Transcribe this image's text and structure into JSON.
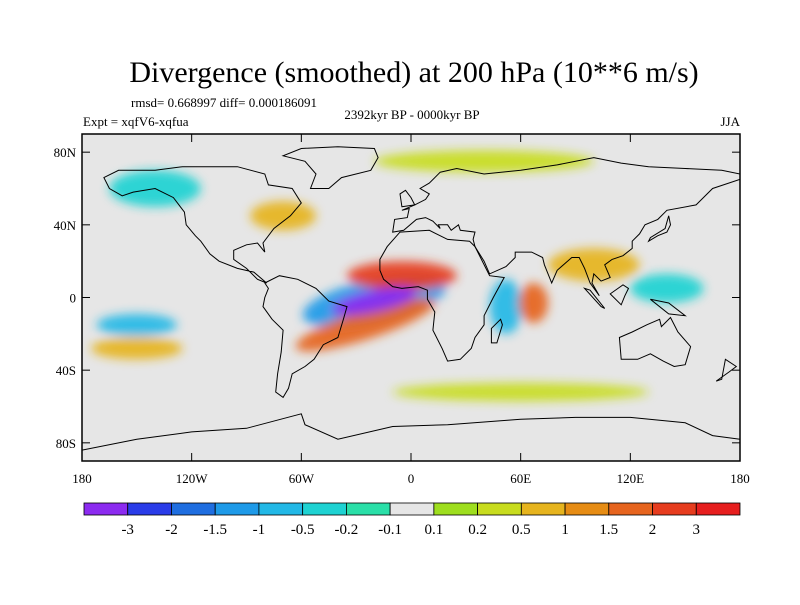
{
  "chart_data": {
    "type": "heatmap",
    "title": "Divergence (smoothed) at 200 hPa (10**6 m/s)",
    "stats": "rmsd= 0.668997 diff= 0.000186091",
    "experiment": "Expt = xqfV6-xqfua",
    "period": "2392kyr BP - 0000kyr BP",
    "season": "JJA",
    "projection": "cylindrical equidistant",
    "xlim": [
      -180,
      180
    ],
    "ylim": [
      -90,
      90
    ],
    "x_ticks": [
      {
        "value": -180,
        "label": "180"
      },
      {
        "value": -120,
        "label": "120W"
      },
      {
        "value": -60,
        "label": "60W"
      },
      {
        "value": 0,
        "label": "0"
      },
      {
        "value": 60,
        "label": "60E"
      },
      {
        "value": 120,
        "label": "120E"
      },
      {
        "value": 180,
        "label": "180"
      }
    ],
    "y_ticks": [
      {
        "value": 80,
        "label": "80N"
      },
      {
        "value": 40,
        "label": "40N"
      },
      {
        "value": 0,
        "label": "0"
      },
      {
        "value": -40,
        "label": "40S"
      },
      {
        "value": -80,
        "label": "80S"
      }
    ],
    "color_levels": [
      "-3",
      "-2",
      "-1.5",
      "-1",
      "-0.5",
      "-0.2",
      "-0.1",
      "0.1",
      "0.2",
      "0.5",
      "1",
      "1.5",
      "2",
      "3"
    ],
    "colors": [
      "#8c2bf0",
      "#2a3ce8",
      "#1f6ee0",
      "#1e9ae8",
      "#22b8e6",
      "#1ed2d2",
      "#2adfa8",
      "#e6e6e6",
      "#9ede1e",
      "#c8dc1e",
      "#e6b41e",
      "#e68c14",
      "#e6641e",
      "#e63c1e",
      "#e61e1e"
    ],
    "features": [
      {
        "name": "atlantic-convergence-core",
        "lon": -20,
        "lat": -2,
        "rx": 24,
        "ry": 6,
        "rot": 12,
        "value": -3.5
      },
      {
        "name": "atlantic-convergence-halo",
        "lon": -20,
        "lat": -2,
        "rx": 40,
        "ry": 12,
        "rot": 12,
        "value": -1.2
      },
      {
        "name": "west-africa-divergence",
        "lon": -5,
        "lat": 12,
        "rx": 30,
        "ry": 8,
        "rot": 0,
        "value": 2.0
      },
      {
        "name": "south-atlantic-divergence",
        "lon": -25,
        "lat": -15,
        "rx": 40,
        "ry": 8,
        "rot": 18,
        "value": 1.8
      },
      {
        "name": "indian-ocean-divergence",
        "lon": 67,
        "lat": -3,
        "rx": 8,
        "ry": 11,
        "rot": 0,
        "value": 1.6
      },
      {
        "name": "indian-ocean-convergence",
        "lon": 52,
        "lat": -5,
        "rx": 9,
        "ry": 15,
        "rot": 0,
        "value": -0.8
      },
      {
        "name": "east-pacific-convergence",
        "lon": -150,
        "lat": -15,
        "rx": 22,
        "ry": 6,
        "rot": 0,
        "value": -0.9
      },
      {
        "name": "south-pacific-divergence",
        "lon": -150,
        "lat": -28,
        "rx": 25,
        "ry": 6,
        "rot": 0,
        "value": 0.7
      },
      {
        "name": "north-america-divergence",
        "lon": -70,
        "lat": 45,
        "rx": 18,
        "ry": 8,
        "rot": 0,
        "value": 0.6
      },
      {
        "name": "north-pacific-convergence",
        "lon": -140,
        "lat": 60,
        "rx": 25,
        "ry": 10,
        "rot": 0,
        "value": -0.3
      },
      {
        "name": "asia-divergence",
        "lon": 100,
        "lat": 18,
        "rx": 25,
        "ry": 9,
        "rot": 0,
        "value": 0.7
      },
      {
        "name": "west-pacific-convergence",
        "lon": 140,
        "lat": 5,
        "rx": 20,
        "ry": 8,
        "rot": 0,
        "value": -0.5
      },
      {
        "name": "southern-ocean-band",
        "lon": 60,
        "lat": -52,
        "rx": 70,
        "ry": 5,
        "rot": 0,
        "value": 0.25
      },
      {
        "name": "arctic-band",
        "lon": 40,
        "lat": 75,
        "rx": 60,
        "ry": 6,
        "rot": 0,
        "value": 0.4
      }
    ]
  }
}
